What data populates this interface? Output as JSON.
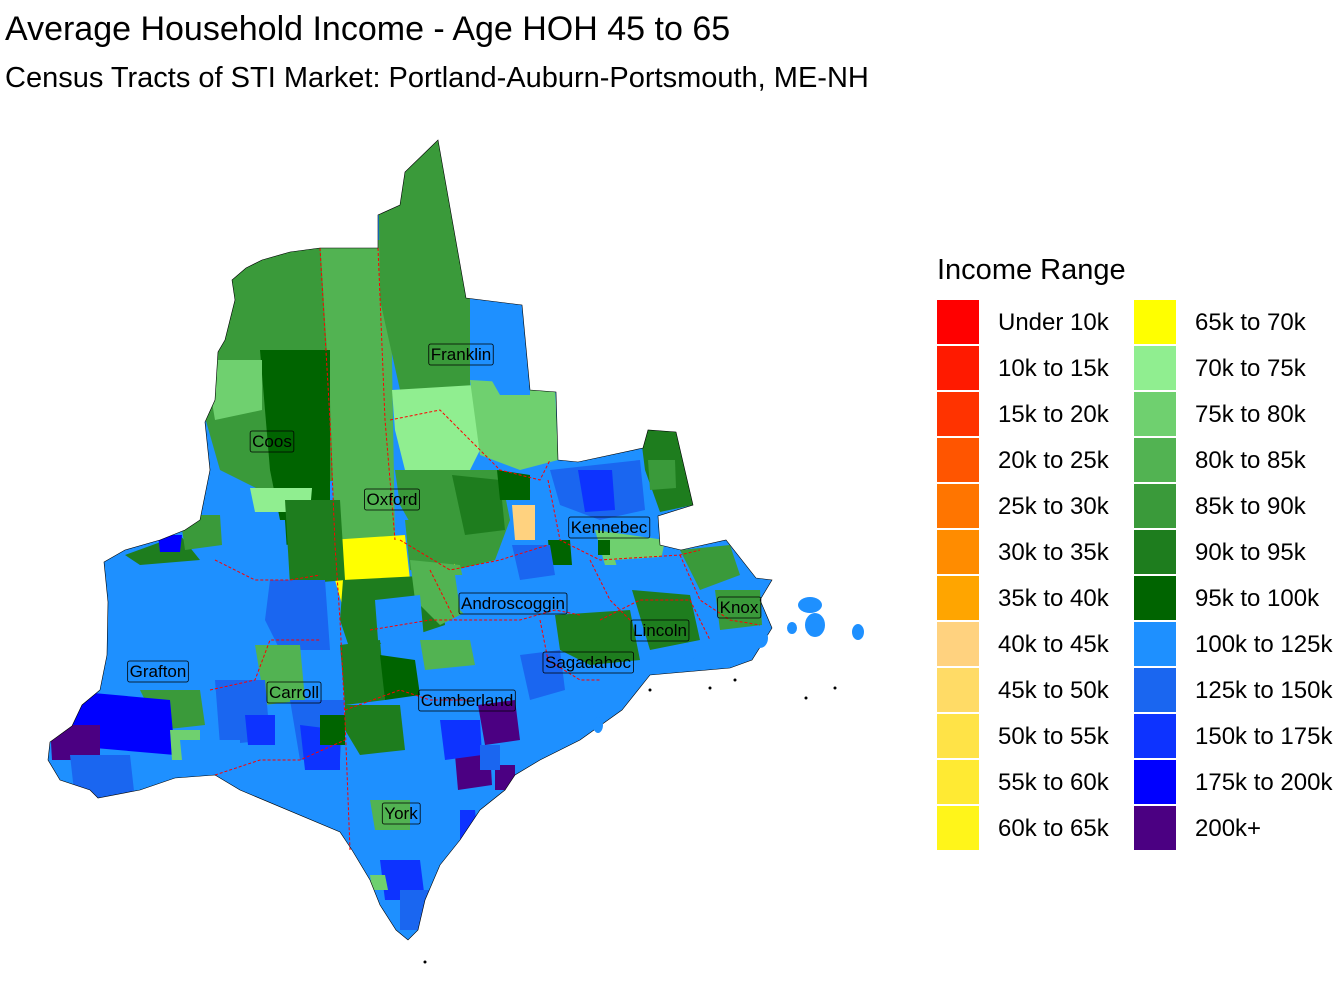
{
  "header": {
    "title": "Average Household Income - Age HOH 45 to 65",
    "subtitle": "Census Tracts of STI Market: Portland-Auburn-Portsmouth, ME-NH"
  },
  "legend": {
    "title": "Income Range",
    "items": [
      {
        "label": "Under 10k",
        "color": "#ff0000"
      },
      {
        "label": "10k to 15k",
        "color": "#ff1a00"
      },
      {
        "label": "15k to 20k",
        "color": "#ff3300"
      },
      {
        "label": "20k to 25k",
        "color": "#ff5500"
      },
      {
        "label": "25k to 30k",
        "color": "#ff7500"
      },
      {
        "label": "30k to 35k",
        "color": "#ff8c00"
      },
      {
        "label": "35k to 40k",
        "color": "#ffa500"
      },
      {
        "label": "40k to 45k",
        "color": "#ffd27f"
      },
      {
        "label": "45k to 50k",
        "color": "#ffdb66"
      },
      {
        "label": "50k to 55k",
        "color": "#ffe347"
      },
      {
        "label": "55k to 60k",
        "color": "#ffea33"
      },
      {
        "label": "60k to 65k",
        "color": "#fff51a"
      },
      {
        "label": "65k to 70k",
        "color": "#ffff00"
      },
      {
        "label": "70k to 75k",
        "color": "#90ee90"
      },
      {
        "label": "75k to 80k",
        "color": "#6fd06f"
      },
      {
        "label": "80k to 85k",
        "color": "#52b352"
      },
      {
        "label": "85k to 90k",
        "color": "#3a9a3a"
      },
      {
        "label": "90k to 95k",
        "color": "#1e7d1e"
      },
      {
        "label": "95k to 100k",
        "color": "#006400"
      },
      {
        "label": "100k to 125k",
        "color": "#1e90ff"
      },
      {
        "label": "125k to 150k",
        "color": "#1a66f0"
      },
      {
        "label": "150k to 175k",
        "color": "#0d33ff"
      },
      {
        "label": "175k to 200k",
        "color": "#0000ff"
      },
      {
        "label": "200k+",
        "color": "#4b0082"
      }
    ]
  },
  "map": {
    "counties": [
      {
        "name": "Franklin"
      },
      {
        "name": "Coos"
      },
      {
        "name": "Oxford"
      },
      {
        "name": "Kennebec"
      },
      {
        "name": "Androscoggin"
      },
      {
        "name": "Knox"
      },
      {
        "name": "Lincoln"
      },
      {
        "name": "Sagadahoc"
      },
      {
        "name": "Grafton"
      },
      {
        "name": "Carroll"
      },
      {
        "name": "Cumberland"
      },
      {
        "name": "York"
      }
    ],
    "boundary_color": "#ff0000"
  }
}
